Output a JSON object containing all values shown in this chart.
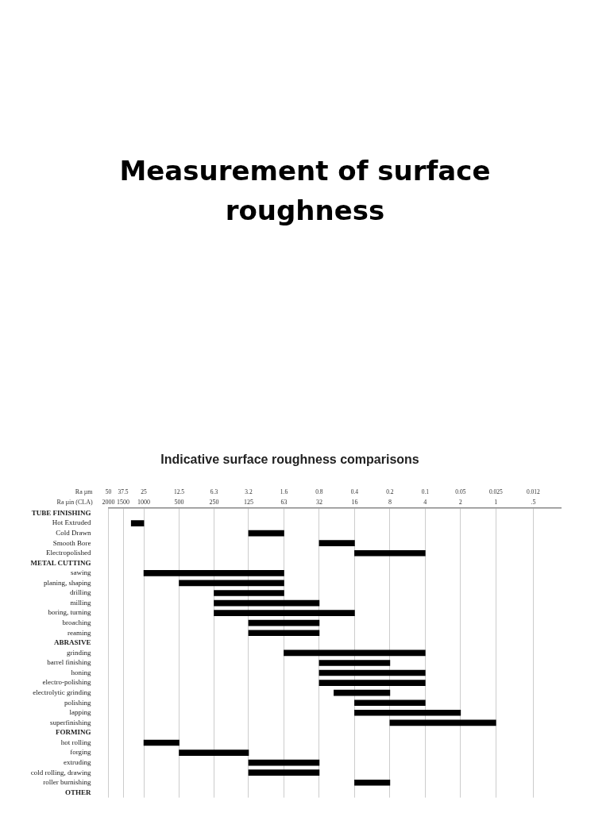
{
  "chart_data": {
    "type": "bar",
    "orientation": "horizontal",
    "title": "Measurement of surface roughness",
    "subtitle": "Indicative surface roughness comparisons",
    "xlabel": "Ra µm",
    "annotations": [
      "Ra µin (CLA)",
      "2000",
      "1500",
      "1000",
      "500",
      "250",
      "125",
      "63",
      "32",
      "16",
      "8",
      "4",
      "2",
      "1",
      ".5"
    ],
    "categories": [
      "TUBE FINISHING",
      "Hot Extruded",
      "Cold Drawn",
      "Smooth Bore",
      "Electropolished",
      "METAL CUTTING",
      "sawing",
      "planing, shaping",
      "drilling",
      "milling",
      "boring, turning",
      "broaching",
      "reaming",
      "ABRASIVE",
      "grinding",
      "barrel finishing",
      "honing",
      "electro-polishing",
      "electrolytic grinding",
      "polishing",
      "lapping",
      "superfinishing",
      "FORMING",
      "hot rolling",
      "forging",
      "extruding",
      "cold rolling, drawing",
      "roller burnishing",
      "OTHER"
    ],
    "base": [
      null,
      25,
      1.6,
      0.4,
      0.1,
      null,
      1.6,
      1.6,
      1.6,
      0.8,
      0.4,
      0.8,
      0.8,
      null,
      0.1,
      0.2,
      0.1,
      0.1,
      0.2,
      0.1,
      0.05,
      0.025,
      null,
      12.5,
      3.2,
      0.8,
      0.8,
      0.2,
      null
    ],
    "values": [
      null,
      7,
      1.6,
      0.4,
      0.3,
      null,
      23.4,
      10.9,
      4.7,
      5.5,
      5.9,
      2.4,
      2.4,
      null,
      1.5,
      0.6,
      0.7,
      0.7,
      0.4,
      0.3,
      0.35,
      0.175,
      null,
      12.5,
      9.3,
      2.4,
      2.4,
      0.2,
      null
    ],
    "color": "#000000",
    "log": "x",
    "grid": "x",
    "xlim": [
      50,
      0.007
    ],
    "xticks": [
      50,
      37.5,
      25,
      12.5,
      6.3,
      3.2,
      1.6,
      0.8,
      0.4,
      0.2,
      0.1,
      0.05,
      0.025,
      0.012
    ]
  }
}
